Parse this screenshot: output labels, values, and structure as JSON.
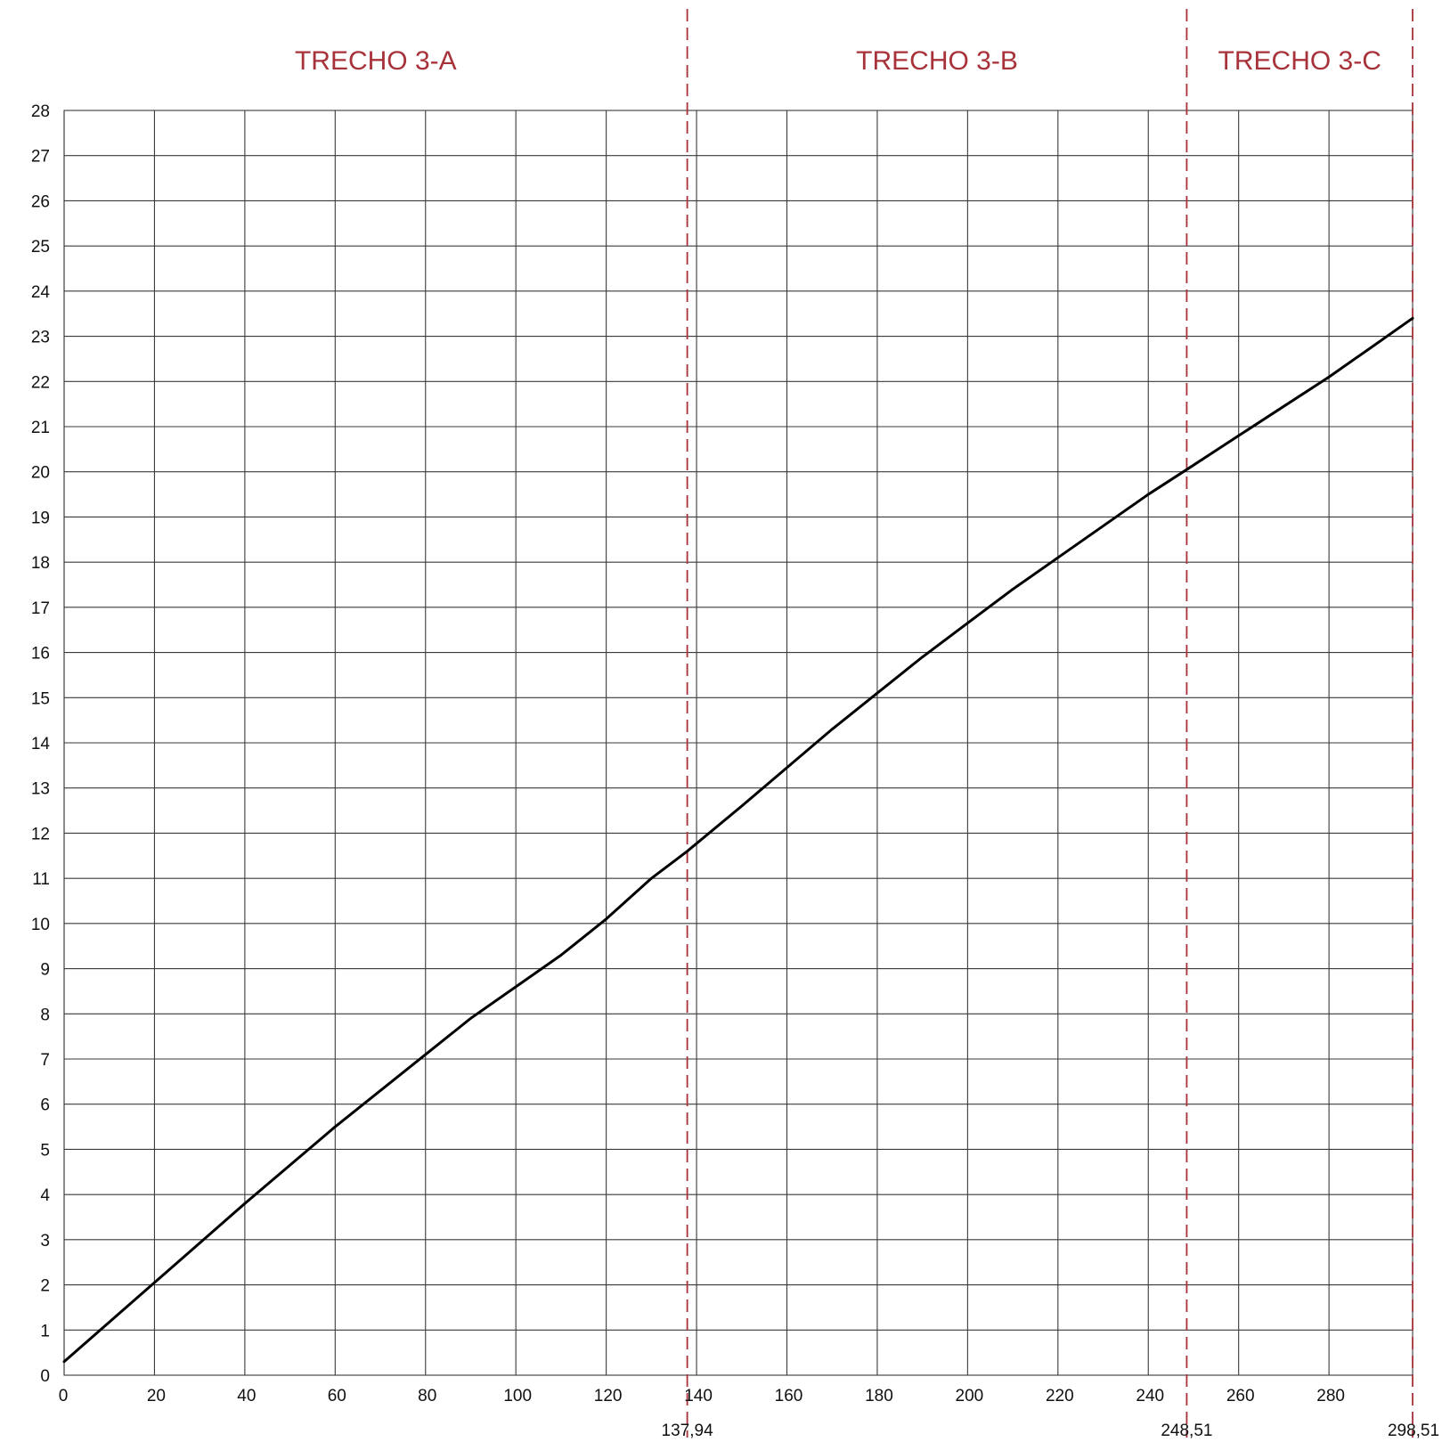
{
  "chart_data": {
    "type": "line",
    "title": "",
    "xlabel": "",
    "ylabel": "",
    "xlim": [
      0,
      298.51
    ],
    "ylim": [
      0,
      28
    ],
    "grid": true,
    "x_ticks": [
      0,
      20,
      40,
      60,
      80,
      100,
      120,
      140,
      160,
      180,
      200,
      220,
      240,
      260,
      280
    ],
    "y_ticks": [
      0,
      1,
      2,
      3,
      4,
      5,
      6,
      7,
      8,
      9,
      10,
      11,
      12,
      13,
      14,
      15,
      16,
      17,
      18,
      19,
      20,
      21,
      22,
      23,
      24,
      25,
      26,
      27,
      28
    ],
    "sections": [
      {
        "label": "TRECHO 3-A",
        "start": 0,
        "end": 137.94
      },
      {
        "label": "TRECHO 3-B",
        "start": 137.94,
        "end": 248.51
      },
      {
        "label": "TRECHO 3-C",
        "start": 248.51,
        "end": 298.51
      }
    ],
    "markers": [
      {
        "x": 137.94,
        "label": "137,94"
      },
      {
        "x": 248.51,
        "label": "248,51"
      },
      {
        "x": 298.51,
        "label": "298,51"
      }
    ],
    "series": [
      {
        "x": [
          0,
          20,
          40,
          60,
          80,
          90,
          100,
          110,
          120,
          130,
          137.94,
          150,
          160,
          170,
          180,
          190,
          200,
          210,
          220,
          230,
          240,
          248.51,
          260,
          270,
          280,
          290,
          298.51
        ],
        "values": [
          0.3,
          2.05,
          3.8,
          5.5,
          7.1,
          7.9,
          8.6,
          9.3,
          10.1,
          11.0,
          11.6,
          12.6,
          13.45,
          14.3,
          15.1,
          15.9,
          16.65,
          17.4,
          18.1,
          18.8,
          19.5,
          20.05,
          20.8,
          21.45,
          22.1,
          22.8,
          23.4
        ]
      }
    ],
    "colors": {
      "series": "#000000",
      "markers": "#a8323a",
      "section_labels": "#a8323a",
      "grid": "#3a3a3a"
    }
  }
}
